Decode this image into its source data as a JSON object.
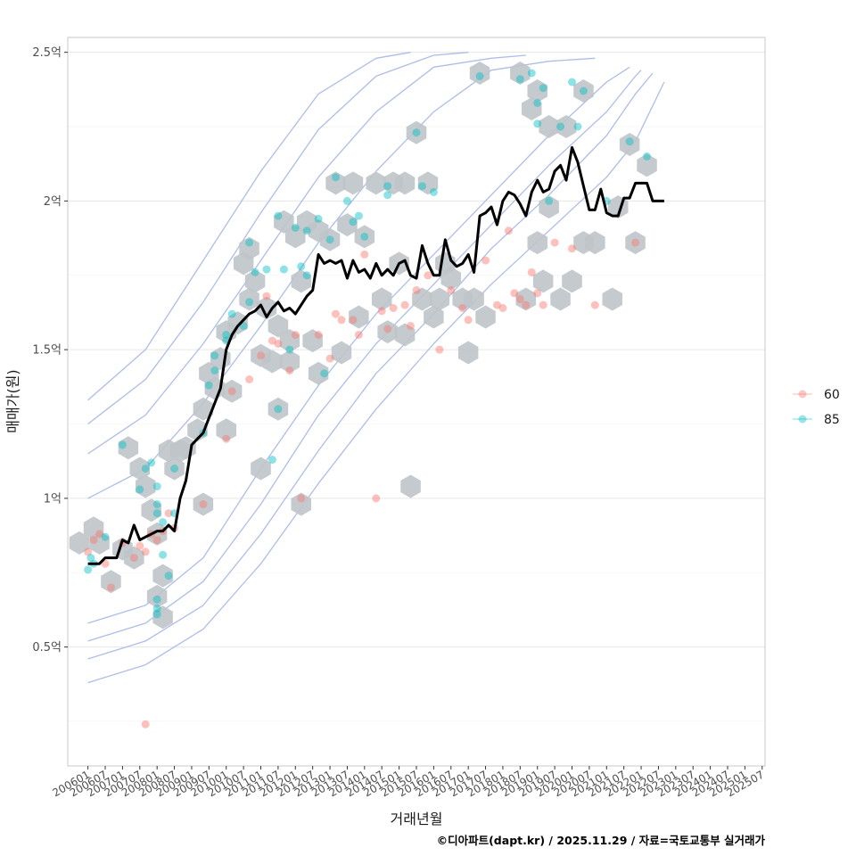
{
  "chart_data": {
    "type": "scatter",
    "title": "",
    "xlabel": "거래년월",
    "ylabel": "매매가(원)",
    "caption": "©디아파트(dapt.kr) / 2025.11.29 / 자료=국토교통부 실거래가",
    "x_unit": "months since 200601",
    "ylim": [
      0.1,
      2.55
    ],
    "xlim": [
      -7,
      235
    ],
    "y_ticks": [
      {
        "value": 0.5,
        "label": "0.5억"
      },
      {
        "value": 1.0,
        "label": "1억"
      },
      {
        "value": 1.5,
        "label": "1.5억"
      },
      {
        "value": 2.0,
        "label": "2억"
      },
      {
        "value": 2.5,
        "label": "2.5억"
      }
    ],
    "x_ticks": [
      "200601",
      "200607",
      "200701",
      "200707",
      "200801",
      "200807",
      "200901",
      "200907",
      "201001",
      "201007",
      "201101",
      "201107",
      "201201",
      "201207",
      "201301",
      "201307",
      "201401",
      "201407",
      "201501",
      "201507",
      "201601",
      "201607",
      "201701",
      "201707",
      "201801",
      "201807",
      "201901",
      "201907",
      "202001",
      "202007",
      "202101",
      "202107",
      "202201",
      "202207",
      "202301",
      "202307",
      "202401",
      "202407",
      "202501",
      "202507"
    ],
    "legend": {
      "position": "right",
      "entries": [
        {
          "name": "60",
          "color": "#F8766D"
        },
        {
          "name": "85",
          "color": "#00BFC4"
        }
      ]
    },
    "colors": {
      "hex": "#bfc4c9",
      "contour": "#aebde8",
      "median_line": "#000000"
    },
    "series": [
      {
        "name": "60",
        "points": [
          [
            0,
            0.82
          ],
          [
            2,
            0.86
          ],
          [
            4,
            0.88
          ],
          [
            6,
            0.78
          ],
          [
            8,
            0.7
          ],
          [
            12,
            0.85
          ],
          [
            16,
            0.8
          ],
          [
            18,
            0.84
          ],
          [
            20,
            0.82
          ],
          [
            22,
            0.88
          ],
          [
            24,
            0.86
          ],
          [
            26,
            0.89
          ],
          [
            28,
            0.95
          ],
          [
            30,
            0.9
          ],
          [
            20,
            0.24
          ],
          [
            40,
            0.98
          ],
          [
            48,
            1.2
          ],
          [
            50,
            1.36
          ],
          [
            56,
            1.4
          ],
          [
            60,
            1.48
          ],
          [
            62,
            1.68
          ],
          [
            64,
            1.53
          ],
          [
            66,
            1.52
          ],
          [
            70,
            1.43
          ],
          [
            72,
            1.55
          ],
          [
            74,
            1.0
          ],
          [
            80,
            1.55
          ],
          [
            84,
            1.47
          ],
          [
            86,
            1.62
          ],
          [
            88,
            1.6
          ],
          [
            92,
            1.6
          ],
          [
            94,
            1.55
          ],
          [
            96,
            1.82
          ],
          [
            100,
            1.0
          ],
          [
            102,
            1.63
          ],
          [
            104,
            1.57
          ],
          [
            106,
            1.64
          ],
          [
            110,
            1.65
          ],
          [
            112,
            1.58
          ],
          [
            114,
            1.7
          ],
          [
            118,
            1.75
          ],
          [
            122,
            1.5
          ],
          [
            126,
            1.7
          ],
          [
            130,
            1.64
          ],
          [
            132,
            1.6
          ],
          [
            138,
            1.8
          ],
          [
            142,
            1.65
          ],
          [
            144,
            1.64
          ],
          [
            146,
            1.9
          ],
          [
            148,
            1.69
          ],
          [
            150,
            1.67
          ],
          [
            152,
            1.65
          ],
          [
            154,
            1.76
          ],
          [
            156,
            1.69
          ],
          [
            158,
            1.65
          ],
          [
            162,
            1.86
          ],
          [
            168,
            1.84
          ],
          [
            176,
            1.65
          ],
          [
            190,
            1.86
          ]
        ]
      },
      {
        "name": "85",
        "points": [
          [
            0,
            0.76
          ],
          [
            1,
            0.8
          ],
          [
            2,
            0.78
          ],
          [
            6,
            0.87
          ],
          [
            12,
            1.18
          ],
          [
            18,
            1.03
          ],
          [
            20,
            1.1
          ],
          [
            22,
            1.12
          ],
          [
            24,
            1.04
          ],
          [
            24,
            0.98
          ],
          [
            24,
            0.95
          ],
          [
            26,
            0.92
          ],
          [
            26,
            0.81
          ],
          [
            24,
            0.66
          ],
          [
            24,
            0.63
          ],
          [
            24,
            0.61
          ],
          [
            28,
            0.74
          ],
          [
            30,
            1.1
          ],
          [
            30,
            0.95
          ],
          [
            40,
            1.22
          ],
          [
            42,
            1.38
          ],
          [
            44,
            1.48
          ],
          [
            44,
            1.43
          ],
          [
            48,
            1.55
          ],
          [
            48,
            1.53
          ],
          [
            50,
            1.62
          ],
          [
            54,
            1.58
          ],
          [
            56,
            1.66
          ],
          [
            58,
            1.76
          ],
          [
            56,
            1.86
          ],
          [
            62,
            1.77
          ],
          [
            64,
            1.13
          ],
          [
            66,
            1.95
          ],
          [
            66,
            1.3
          ],
          [
            68,
            1.77
          ],
          [
            70,
            1.5
          ],
          [
            72,
            1.91
          ],
          [
            74,
            1.78
          ],
          [
            76,
            1.9
          ],
          [
            76,
            1.75
          ],
          [
            80,
            1.94
          ],
          [
            82,
            1.42
          ],
          [
            84,
            1.87
          ],
          [
            86,
            2.08
          ],
          [
            90,
            2.0
          ],
          [
            92,
            1.93
          ],
          [
            94,
            1.95
          ],
          [
            96,
            1.88
          ],
          [
            104,
            2.05
          ],
          [
            104,
            2.02
          ],
          [
            114,
            2.23
          ],
          [
            116,
            2.05
          ],
          [
            120,
            2.03
          ],
          [
            136,
            2.42
          ],
          [
            150,
            2.41
          ],
          [
            154,
            2.43
          ],
          [
            156,
            2.33
          ],
          [
            156,
            2.26
          ],
          [
            158,
            2.38
          ],
          [
            160,
            2.0
          ],
          [
            164,
            2.25
          ],
          [
            168,
            2.4
          ],
          [
            170,
            2.25
          ],
          [
            172,
            2.37
          ],
          [
            180,
            2.0
          ],
          [
            188,
            2.2
          ],
          [
            194,
            2.15
          ]
        ]
      }
    ],
    "median_line": {
      "x": [
        0,
        4,
        6,
        10,
        12,
        14,
        16,
        18,
        20,
        22,
        24,
        26,
        28,
        30,
        32,
        34,
        36,
        38,
        40,
        42,
        44,
        46,
        48,
        50,
        52,
        54,
        56,
        58,
        60,
        62,
        64,
        66,
        68,
        70,
        72,
        74,
        76,
        78,
        80,
        82,
        84,
        86,
        88,
        90,
        92,
        94,
        96,
        98,
        100,
        102,
        104,
        106,
        108,
        110,
        112,
        114,
        116,
        118,
        120,
        122,
        124,
        126,
        128,
        130,
        132,
        134,
        136,
        138,
        140,
        142,
        144,
        146,
        148,
        150,
        152,
        154,
        156,
        158,
        160,
        162,
        164,
        166,
        168,
        170,
        172,
        174,
        176,
        178,
        180,
        182,
        184,
        186,
        188,
        190,
        192,
        194,
        196,
        198,
        200
      ],
      "y": [
        0.78,
        0.78,
        0.8,
        0.8,
        0.86,
        0.85,
        0.91,
        0.86,
        0.87,
        0.88,
        0.89,
        0.89,
        0.91,
        0.89,
        1.0,
        1.06,
        1.18,
        1.2,
        1.22,
        1.27,
        1.32,
        1.37,
        1.5,
        1.55,
        1.58,
        1.6,
        1.62,
        1.63,
        1.65,
        1.61,
        1.64,
        1.66,
        1.63,
        1.64,
        1.62,
        1.65,
        1.68,
        1.7,
        1.82,
        1.79,
        1.8,
        1.79,
        1.8,
        1.74,
        1.8,
        1.76,
        1.77,
        1.74,
        1.79,
        1.75,
        1.77,
        1.75,
        1.79,
        1.8,
        1.75,
        1.74,
        1.85,
        1.79,
        1.75,
        1.75,
        1.87,
        1.8,
        1.78,
        1.79,
        1.82,
        1.76,
        1.95,
        1.96,
        1.98,
        1.92,
        2.0,
        2.03,
        2.02,
        1.99,
        1.95,
        2.03,
        2.07,
        2.03,
        2.04,
        2.1,
        2.12,
        2.07,
        2.18,
        2.13,
        2.05,
        1.97,
        1.97,
        2.04,
        1.96,
        1.95,
        1.95,
        2.01,
        2.01,
        2.06,
        2.06,
        2.06,
        2.0,
        2.0,
        2.0
      ]
    },
    "hexbins": [
      [
        -3,
        0.85
      ],
      [
        2,
        0.9
      ],
      [
        4,
        0.85
      ],
      [
        8,
        0.72
      ],
      [
        12,
        0.83
      ],
      [
        14,
        1.17
      ],
      [
        16,
        0.8
      ],
      [
        18,
        1.1
      ],
      [
        20,
        1.04
      ],
      [
        22,
        0.96
      ],
      [
        24,
        0.88
      ],
      [
        24,
        0.67
      ],
      [
        26,
        0.74
      ],
      [
        26,
        0.6
      ],
      [
        28,
        1.16
      ],
      [
        30,
        1.1
      ],
      [
        32,
        1.16
      ],
      [
        34,
        1.17
      ],
      [
        38,
        1.23
      ],
      [
        40,
        1.3
      ],
      [
        40,
        0.98
      ],
      [
        42,
        1.42
      ],
      [
        44,
        1.37
      ],
      [
        46,
        1.47
      ],
      [
        48,
        1.56
      ],
      [
        48,
        1.23
      ],
      [
        50,
        1.36
      ],
      [
        52,
        1.59
      ],
      [
        54,
        1.79
      ],
      [
        56,
        1.84
      ],
      [
        56,
        1.67
      ],
      [
        58,
        1.73
      ],
      [
        60,
        1.48
      ],
      [
        60,
        1.1
      ],
      [
        62,
        1.64
      ],
      [
        64,
        1.46
      ],
      [
        66,
        1.58
      ],
      [
        66,
        1.3
      ],
      [
        68,
        1.93
      ],
      [
        70,
        1.53
      ],
      [
        70,
        1.46
      ],
      [
        72,
        1.88
      ],
      [
        74,
        1.73
      ],
      [
        74,
        0.98
      ],
      [
        76,
        1.93
      ],
      [
        78,
        1.53
      ],
      [
        80,
        1.9
      ],
      [
        80,
        1.42
      ],
      [
        84,
        1.87
      ],
      [
        86,
        2.06
      ],
      [
        88,
        1.49
      ],
      [
        90,
        1.92
      ],
      [
        92,
        2.06
      ],
      [
        94,
        1.61
      ],
      [
        96,
        1.88
      ],
      [
        100,
        2.06
      ],
      [
        102,
        1.67
      ],
      [
        104,
        1.56
      ],
      [
        106,
        2.06
      ],
      [
        108,
        1.79
      ],
      [
        110,
        2.06
      ],
      [
        110,
        1.55
      ],
      [
        112,
        1.04
      ],
      [
        114,
        2.23
      ],
      [
        116,
        1.67
      ],
      [
        118,
        2.06
      ],
      [
        120,
        1.61
      ],
      [
        122,
        1.67
      ],
      [
        124,
        1.79
      ],
      [
        126,
        1.74
      ],
      [
        130,
        1.67
      ],
      [
        132,
        1.49
      ],
      [
        134,
        1.67
      ],
      [
        136,
        2.43
      ],
      [
        138,
        1.61
      ],
      [
        150,
        2.43
      ],
      [
        152,
        1.67
      ],
      [
        154,
        2.31
      ],
      [
        156,
        2.37
      ],
      [
        156,
        1.86
      ],
      [
        158,
        1.73
      ],
      [
        160,
        2.25
      ],
      [
        160,
        1.98
      ],
      [
        164,
        1.67
      ],
      [
        166,
        2.25
      ],
      [
        168,
        1.73
      ],
      [
        172,
        2.37
      ],
      [
        172,
        1.86
      ],
      [
        176,
        1.86
      ],
      [
        182,
        1.67
      ],
      [
        184,
        1.98
      ],
      [
        188,
        2.19
      ],
      [
        190,
        1.86
      ],
      [
        194,
        2.12
      ]
    ],
    "contours": [
      {
        "x": [
          0,
          20,
          40,
          60,
          80,
          100,
          120,
          140,
          160,
          180,
          190,
          200
        ],
        "y": [
          0.38,
          0.44,
          0.56,
          0.78,
          1.05,
          1.3,
          1.52,
          1.72,
          1.9,
          2.08,
          2.2,
          2.4
        ]
      },
      {
        "x": [
          0,
          20,
          40,
          60,
          80,
          100,
          120,
          140,
          160,
          180,
          190,
          196
        ],
        "y": [
          0.46,
          0.52,
          0.64,
          0.88,
          1.16,
          1.42,
          1.62,
          1.84,
          2.02,
          2.22,
          2.36,
          2.43
        ]
      },
      {
        "x": [
          0,
          20,
          40,
          60,
          80,
          100,
          120,
          140,
          160,
          180,
          190,
          192
        ],
        "y": [
          0.52,
          0.58,
          0.72,
          0.98,
          1.28,
          1.52,
          1.72,
          1.92,
          2.12,
          2.3,
          2.42,
          2.44
        ]
      },
      {
        "x": [
          0,
          20,
          40,
          60,
          80,
          100,
          120,
          140,
          160,
          180,
          188
        ],
        "y": [
          0.58,
          0.64,
          0.8,
          1.1,
          1.38,
          1.62,
          1.82,
          2.02,
          2.22,
          2.4,
          2.45
        ]
      },
      {
        "x": [
          0,
          20,
          40,
          60,
          80,
          100,
          120,
          140,
          160,
          176
        ],
        "y": [
          1.0,
          1.1,
          1.32,
          1.58,
          1.86,
          2.1,
          2.3,
          2.44,
          2.47,
          2.48
        ]
      },
      {
        "x": [
          0,
          20,
          40,
          60,
          80,
          100,
          120,
          140,
          152
        ],
        "y": [
          1.15,
          1.28,
          1.52,
          1.8,
          2.08,
          2.3,
          2.45,
          2.48,
          2.49
        ]
      },
      {
        "x": [
          0,
          20,
          40,
          60,
          80,
          100,
          120,
          132
        ],
        "y": [
          1.25,
          1.4,
          1.66,
          1.96,
          2.24,
          2.42,
          2.49,
          2.5
        ]
      },
      {
        "x": [
          0,
          20,
          40,
          60,
          80,
          100,
          112
        ],
        "y": [
          1.33,
          1.5,
          1.8,
          2.1,
          2.36,
          2.48,
          2.5
        ]
      }
    ]
  }
}
